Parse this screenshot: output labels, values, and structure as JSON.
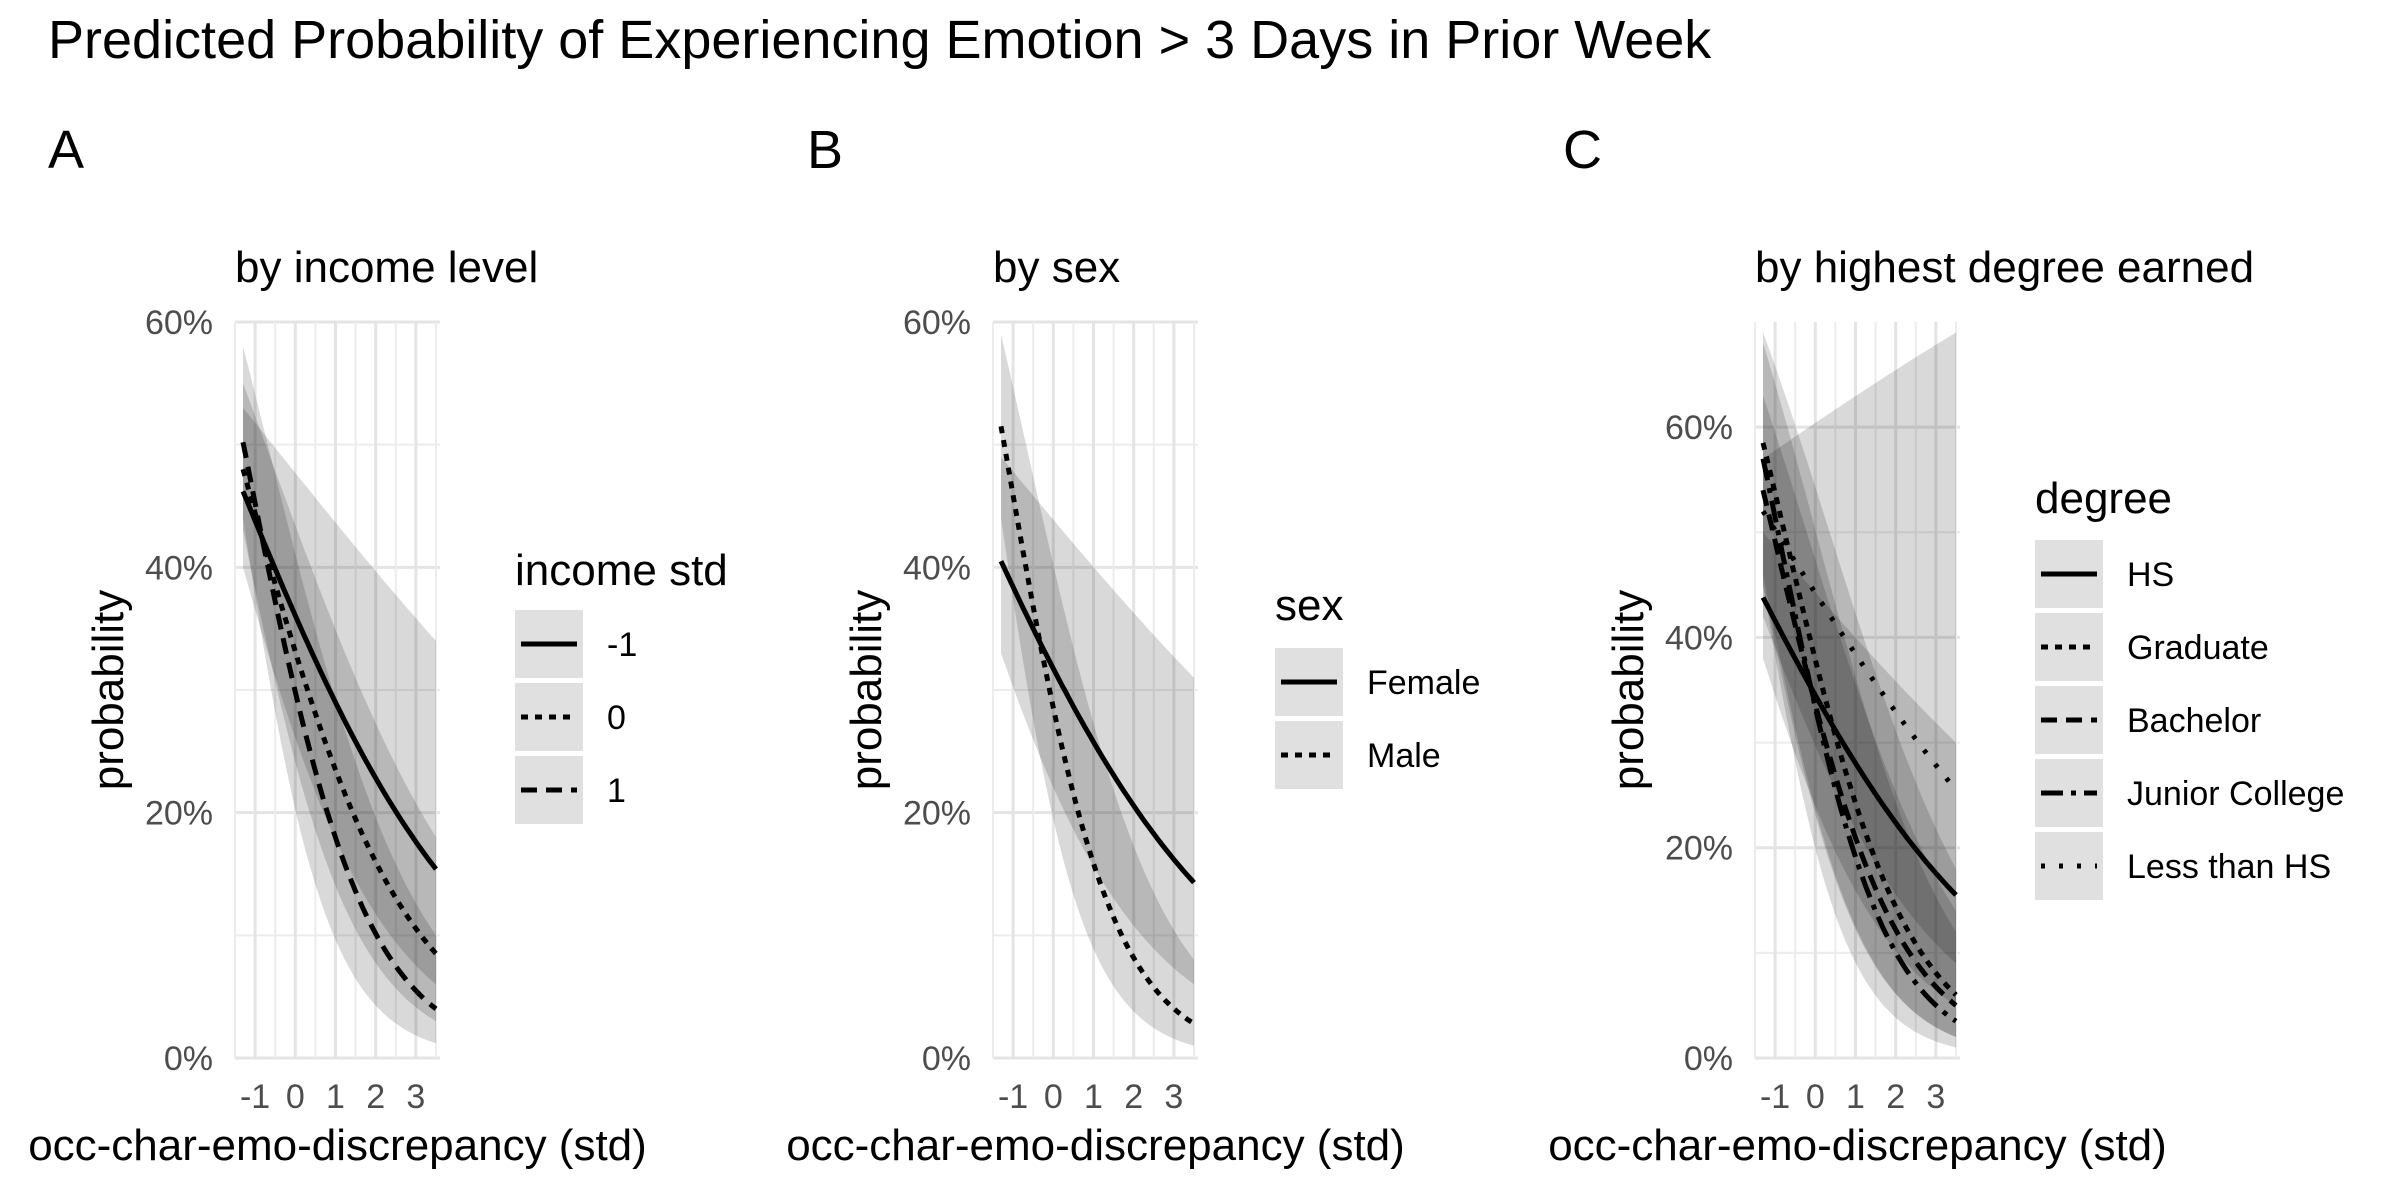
{
  "title": "Predicted Probability of Experiencing Emotion > 3 Days in Prior Week",
  "chart_data": [
    {
      "type": "line",
      "panel_tag": "A",
      "subtitle": "by income level",
      "xlabel": "occ-char-emo-discrepancy (std)",
      "ylabel": "probability",
      "xlim": [
        -1.5,
        3.6
      ],
      "ylim": [
        0,
        0.6
      ],
      "x_ticks": [
        "-1",
        "0",
        "1",
        "2",
        "3"
      ],
      "y_ticks": [
        "0%",
        "20%",
        "40%",
        "60%"
      ],
      "grid": true,
      "legend": {
        "title": "income std",
        "position": "right",
        "entries": [
          "-1",
          "0",
          "1"
        ]
      },
      "series": [
        {
          "name": "-1",
          "linetype": "solid",
          "x": [
            -1.3,
            3.5
          ],
          "y": [
            0.462,
            0.154
          ],
          "lower": [
            0.4,
            0.06
          ],
          "upper": [
            0.53,
            0.34
          ]
        },
        {
          "name": "0",
          "linetype": "dotted",
          "x": [
            -1.3,
            3.5
          ],
          "y": [
            0.48,
            0.085
          ],
          "lower": [
            0.43,
            0.03
          ],
          "upper": [
            0.55,
            0.18
          ]
        },
        {
          "name": "1",
          "linetype": "dashed",
          "x": [
            -1.3,
            3.5
          ],
          "y": [
            0.502,
            0.04
          ],
          "lower": [
            0.44,
            0.012
          ],
          "upper": [
            0.58,
            0.1
          ]
        }
      ]
    },
    {
      "type": "line",
      "panel_tag": "B",
      "subtitle": "by sex",
      "xlabel": "occ-char-emo-discrepancy (std)",
      "ylabel": "probability",
      "xlim": [
        -1.5,
        3.6
      ],
      "ylim": [
        0,
        0.6
      ],
      "x_ticks": [
        "-1",
        "0",
        "1",
        "2",
        "3"
      ],
      "y_ticks": [
        "0%",
        "20%",
        "40%",
        "60%"
      ],
      "grid": true,
      "legend": {
        "title": "sex",
        "position": "right",
        "entries": [
          "Female",
          "Male"
        ]
      },
      "series": [
        {
          "name": "Female",
          "linetype": "solid",
          "x": [
            -1.3,
            3.5
          ],
          "y": [
            0.405,
            0.143
          ],
          "lower": [
            0.33,
            0.06
          ],
          "upper": [
            0.49,
            0.31
          ]
        },
        {
          "name": "Male",
          "linetype": "dotted",
          "x": [
            -1.3,
            3.5
          ],
          "y": [
            0.515,
            0.028
          ],
          "lower": [
            0.44,
            0.01
          ],
          "upper": [
            0.59,
            0.08
          ]
        }
      ]
    },
    {
      "type": "line",
      "panel_tag": "C",
      "subtitle": "by highest degree earned",
      "xlabel": "occ-char-emo-discrepancy (std)",
      "ylabel": "probability",
      "xlim": [
        -1.5,
        3.6
      ],
      "ylim": [
        0,
        0.7
      ],
      "x_ticks": [
        "-1",
        "0",
        "1",
        "2",
        "3"
      ],
      "y_ticks": [
        "0%",
        "20%",
        "40%",
        "60%"
      ],
      "grid": true,
      "legend": {
        "title": "degree",
        "position": "right",
        "entries": [
          "HS",
          "Graduate",
          "Bachelor",
          "Junior College",
          "Less than HS"
        ]
      },
      "series": [
        {
          "name": "HS",
          "linetype": "solid",
          "x": [
            -1.3,
            3.5
          ],
          "y": [
            0.438,
            0.155
          ],
          "lower": [
            0.38,
            0.05
          ],
          "upper": [
            0.5,
            0.3
          ]
        },
        {
          "name": "Graduate",
          "linetype": "dotted",
          "x": [
            -1.3,
            3.5
          ],
          "y": [
            0.585,
            0.06
          ],
          "lower": [
            0.46,
            0.02
          ],
          "upper": [
            0.69,
            0.18
          ]
        },
        {
          "name": "Bachelor",
          "linetype": "dashed",
          "x": [
            -1.3,
            3.5
          ],
          "y": [
            0.54,
            0.05
          ],
          "lower": [
            0.45,
            0.02
          ],
          "upper": [
            0.63,
            0.14
          ]
        },
        {
          "name": "Junior College",
          "linetype": "dashdot",
          "x": [
            -1.3,
            3.5
          ],
          "y": [
            0.57,
            0.035
          ],
          "lower": [
            0.45,
            0.01
          ],
          "upper": [
            0.68,
            0.12
          ]
        },
        {
          "name": "Less than HS",
          "linetype": "dotted-wide",
          "x": [
            -1.3,
            3.5
          ],
          "y": [
            0.52,
            0.255
          ],
          "lower": [
            0.42,
            0.09
          ],
          "upper": [
            0.57,
            0.69
          ]
        }
      ]
    }
  ]
}
